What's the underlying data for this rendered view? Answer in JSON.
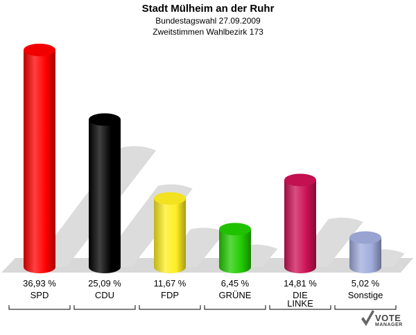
{
  "header": {
    "title": "Stadt Mülheim an der Ruhr",
    "subtitle1": "Bundestagswahl 27.09.2009",
    "subtitle2": "Zweitstimmen Wahlbezirk 173"
  },
  "logo": {
    "line1": "VOTE",
    "line2": "MANAGER"
  },
  "chart_data": {
    "type": "bar",
    "title": "Stadt Mülheim an der Ruhr",
    "subtitle": "Bundestagswahl 27.09.2009 / Zweitstimmen Wahlbezirk 173",
    "categories": [
      "SPD",
      "CDU",
      "FDP",
      "GRÜNE",
      "DIE LINKE",
      "Sonstige"
    ],
    "category_lines": [
      [
        "SPD"
      ],
      [
        "CDU"
      ],
      [
        "FDP"
      ],
      [
        "GRÜNE"
      ],
      [
        "DIE",
        "LINKE"
      ],
      [
        "Sonstige"
      ]
    ],
    "values": [
      36.93,
      25.09,
      11.67,
      6.45,
      14.81,
      5.02
    ],
    "value_labels": [
      "36,93 %",
      "25,09 %",
      "11,67 %",
      "6,45 %",
      "14,81 %",
      "5,02 %"
    ],
    "colors": [
      "#ff0000",
      "#000000",
      "#ffee22",
      "#22cc00",
      "#cc1155",
      "#a0acdc"
    ],
    "unit": "%",
    "grid": false,
    "legend": "none"
  }
}
